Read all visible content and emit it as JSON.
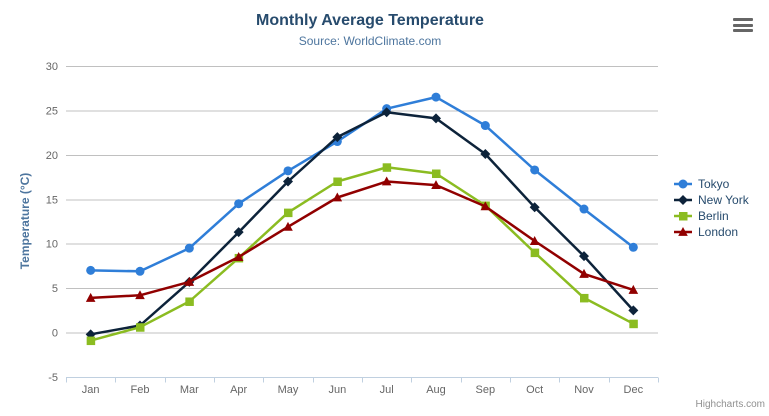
{
  "chart_data": {
    "type": "line",
    "title": "Monthly Average Temperature",
    "subtitle": "Source: WorldClimate.com",
    "xlabel": "",
    "ylabel": "Temperature (°C)",
    "categories": [
      "Jan",
      "Feb",
      "Mar",
      "Apr",
      "May",
      "Jun",
      "Jul",
      "Aug",
      "Sep",
      "Oct",
      "Nov",
      "Dec"
    ],
    "series": [
      {
        "name": "Tokyo",
        "marker": "circle",
        "color": "#2f7ed8",
        "values": [
          7.0,
          6.9,
          9.5,
          14.5,
          18.2,
          21.5,
          25.2,
          26.5,
          23.3,
          18.3,
          13.9,
          9.6
        ]
      },
      {
        "name": "New York",
        "marker": "diamond",
        "color": "#0d233a",
        "values": [
          -0.2,
          0.8,
          5.7,
          11.3,
          17.0,
          22.0,
          24.8,
          24.1,
          20.1,
          14.1,
          8.6,
          2.5
        ]
      },
      {
        "name": "Berlin",
        "marker": "square",
        "color": "#8bbc21",
        "values": [
          -0.9,
          0.6,
          3.5,
          8.4,
          13.5,
          17.0,
          18.6,
          17.9,
          14.3,
          9.0,
          3.9,
          1.0
        ]
      },
      {
        "name": "London",
        "marker": "triangle",
        "color": "#910000",
        "values": [
          3.9,
          4.2,
          5.7,
          8.5,
          11.9,
          15.2,
          17.0,
          16.6,
          14.2,
          10.3,
          6.6,
          4.8
        ]
      }
    ],
    "ylim": [
      -5,
      30
    ],
    "yticks": [
      30,
      25,
      20,
      15,
      10,
      5,
      0,
      -5
    ],
    "grid": true,
    "legend_position": "right"
  },
  "credit": "Highcharts.com",
  "icons": {
    "context_menu": "hamburger-icon"
  },
  "colors": {
    "title": "#274b6d",
    "subtitle": "#4d759e",
    "axis_title": "#4d759e",
    "axis_labels": "#666666",
    "grid_line": "#c0c0c0",
    "axis_line": "#c0d0e0",
    "legend_text": "#274b6d",
    "credit": "#909090",
    "icon": "#666666",
    "background": "#ffffff"
  }
}
